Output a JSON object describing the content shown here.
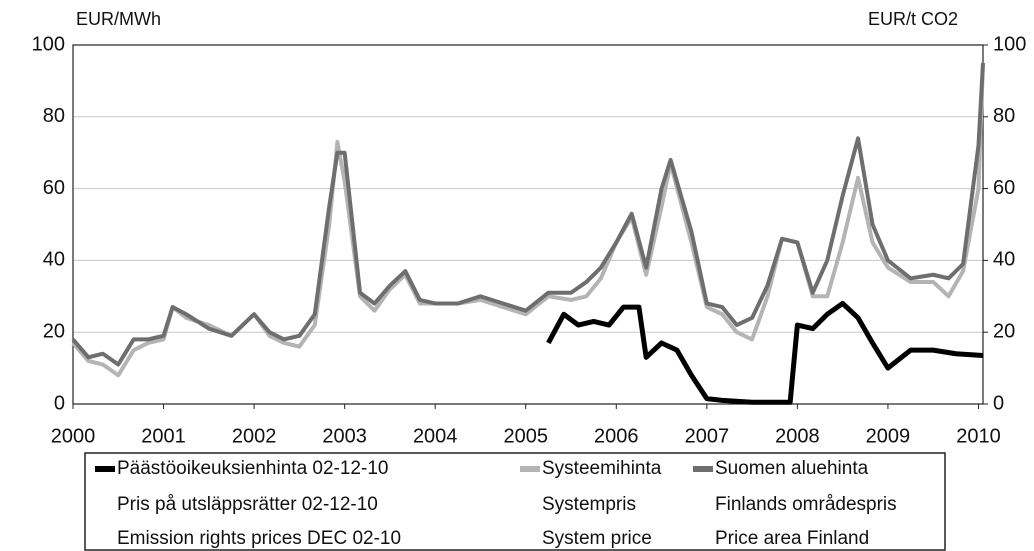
{
  "chart_data": {
    "type": "line",
    "ylabel": "EUR/MWh",
    "y2label": "EUR/t CO2",
    "xlim": [
      2000,
      2010.05
    ],
    "xticks": [
      2000,
      2001,
      2002,
      2003,
      2004,
      2005,
      2006,
      2007,
      2008,
      2009,
      2010
    ],
    "ylim": [
      0,
      100
    ],
    "yticks": [
      0,
      20,
      40,
      60,
      80,
      100
    ],
    "y2lim": [
      0,
      100
    ],
    "y2ticks": [
      0,
      20,
      40,
      60,
      80,
      100
    ],
    "grid": true,
    "legend": "bottom",
    "series": [
      {
        "name": "Päästöoikeuksienhinta 02-12-10",
        "name_translations": [
          "Pris på utsläppsrätter 02-12-10",
          "Emission rights prices DEC 02-10"
        ],
        "color": "#000000",
        "axis": "y2",
        "x": [
          2005.25,
          2005.42,
          2005.58,
          2005.75,
          2005.92,
          2006.08,
          2006.25,
          2006.33,
          2006.5,
          2006.67,
          2006.83,
          2007.0,
          2007.17,
          2007.5,
          2007.92,
          2008.0,
          2008.17,
          2008.33,
          2008.5,
          2008.67,
          2008.83,
          2009.0,
          2009.25,
          2009.5,
          2009.75,
          2010.05
        ],
        "values": [
          17,
          25,
          22,
          23,
          22,
          27,
          27,
          13,
          17,
          15,
          8,
          1.5,
          1,
          0.5,
          0.5,
          22,
          21,
          25,
          28,
          24,
          17,
          10,
          15,
          15,
          14,
          13.5
        ]
      },
      {
        "name": "Systeemihinta",
        "name_translations": [
          "Systempris",
          "System price"
        ],
        "color": "#b4b4b4",
        "x": [
          2000,
          2000.17,
          2000.33,
          2000.5,
          2000.67,
          2000.83,
          2001,
          2001.1,
          2001.25,
          2001.5,
          2001.75,
          2002,
          2002.17,
          2002.33,
          2002.5,
          2002.67,
          2002.83,
          2002.92,
          2003.0,
          2003.17,
          2003.33,
          2003.5,
          2003.67,
          2003.83,
          2004,
          2004.25,
          2004.5,
          2004.75,
          2005,
          2005.25,
          2005.5,
          2005.67,
          2005.83,
          2006,
          2006.17,
          2006.33,
          2006.5,
          2006.6,
          2006.83,
          2007,
          2007.17,
          2007.33,
          2007.5,
          2007.67,
          2007.83,
          2008,
          2008.17,
          2008.33,
          2008.5,
          2008.67,
          2008.83,
          2009,
          2009.25,
          2009.5,
          2009.67,
          2009.83,
          2010,
          2010.05
        ],
        "values": [
          17,
          12,
          11,
          8,
          15,
          17,
          18,
          27,
          24,
          22,
          19,
          25,
          19,
          17,
          16,
          22,
          50,
          73,
          62,
          30,
          26,
          32,
          36,
          28,
          28,
          28,
          29,
          27,
          25,
          30,
          29,
          30,
          35,
          45,
          52,
          36,
          55,
          67,
          45,
          27,
          25,
          20,
          18,
          30,
          46,
          45,
          30,
          30,
          45,
          63,
          45,
          38,
          34,
          34,
          30,
          37,
          60,
          95
        ]
      },
      {
        "name": "Suomen aluehinta",
        "name_translations": [
          "Finlands områdespris",
          "Price area Finland"
        ],
        "color": "#6e6e6e",
        "x": [
          2000,
          2000.17,
          2000.33,
          2000.5,
          2000.67,
          2000.83,
          2001,
          2001.1,
          2001.25,
          2001.5,
          2001.75,
          2002,
          2002.17,
          2002.33,
          2002.5,
          2002.67,
          2002.83,
          2002.92,
          2003.0,
          2003.17,
          2003.33,
          2003.5,
          2003.67,
          2003.83,
          2004,
          2004.25,
          2004.5,
          2004.75,
          2005,
          2005.25,
          2005.5,
          2005.67,
          2005.83,
          2006,
          2006.17,
          2006.33,
          2006.5,
          2006.6,
          2006.83,
          2007,
          2007.17,
          2007.33,
          2007.5,
          2007.67,
          2007.83,
          2008,
          2008.17,
          2008.33,
          2008.5,
          2008.67,
          2008.83,
          2009,
          2009.25,
          2009.5,
          2009.67,
          2009.83,
          2010,
          2010.05
        ],
        "values": [
          18,
          13,
          14,
          11,
          18,
          18,
          19,
          27,
          25,
          21,
          19,
          25,
          20,
          18,
          19,
          25,
          55,
          70,
          70,
          31,
          28,
          33,
          37,
          29,
          28,
          28,
          30,
          28,
          26,
          31,
          31,
          34,
          38,
          45,
          53,
          38,
          60,
          68,
          48,
          28,
          27,
          22,
          24,
          33,
          46,
          45,
          31,
          40,
          58,
          74,
          50,
          40,
          35,
          36,
          35,
          39,
          72,
          95
        ]
      }
    ]
  }
}
